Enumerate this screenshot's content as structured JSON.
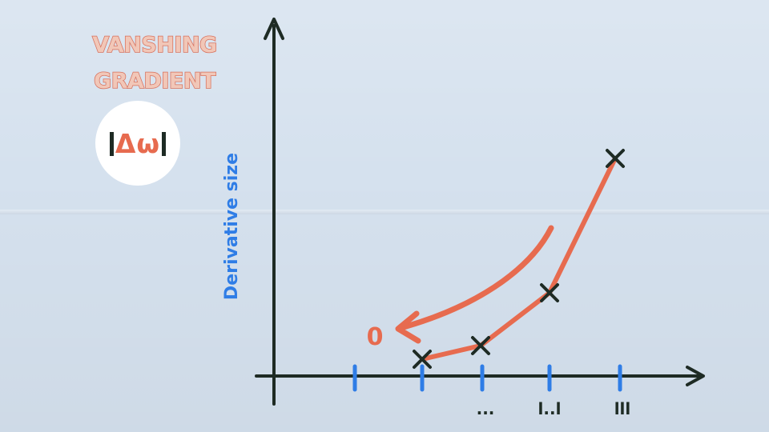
{
  "title": "VANSHING GRADIENT",
  "badge": {
    "symbol": "Δω",
    "icon": "abs-delta-omega-badge"
  },
  "chart_data": {
    "type": "line",
    "ylabel": "Derivative size",
    "x_tick_labels": [
      "...",
      "l..l",
      "lll"
    ],
    "points": [
      {
        "x": 0,
        "y": 0.08
      },
      {
        "x": 1,
        "y": 0.15
      },
      {
        "x": 2,
        "y": 0.4
      },
      {
        "x": 3,
        "y": 1.0
      }
    ],
    "annotation": {
      "label": "0",
      "meaning": "arrow pointing toward zero"
    }
  },
  "colors": {
    "background": "#d5e1ee",
    "axis": "#1e2b24",
    "curve": "#e76b4f",
    "tick": "#2f7de6",
    "ylabel": "#2f7de6",
    "title_fill": "#f1c7b8",
    "title_stroke": "#d8705c"
  }
}
